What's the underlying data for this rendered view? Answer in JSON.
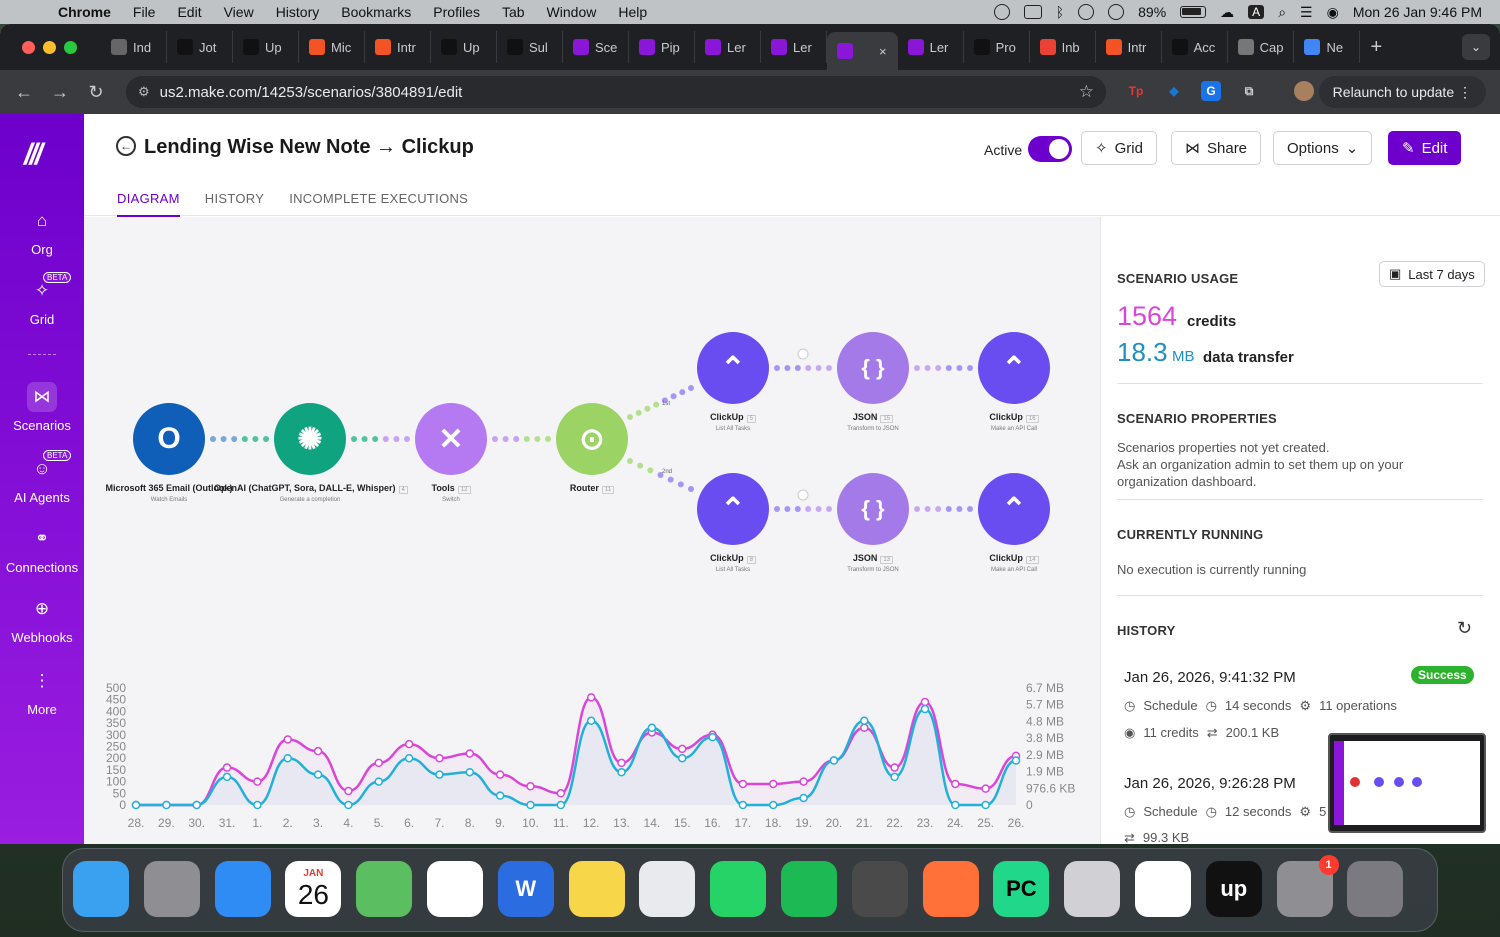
{
  "menubar": {
    "app_name": "Chrome",
    "menus": [
      "File",
      "Edit",
      "View",
      "History",
      "Bookmarks",
      "Profiles",
      "Tab",
      "Window",
      "Help"
    ],
    "battery": "89%",
    "datetime": "Mon 26 Jan  9:46 PM",
    "input_indicator": "A"
  },
  "browser": {
    "tabs": [
      {
        "label": "Ind",
        "icon": "info-icon"
      },
      {
        "label": "Jot",
        "icon": "upwork-icon"
      },
      {
        "label": "Up",
        "icon": "upwork-icon"
      },
      {
        "label": "Mic",
        "icon": "microsoft-icon"
      },
      {
        "label": "Intr",
        "icon": "microsoft-icon"
      },
      {
        "label": "Up",
        "icon": "upwork-icon"
      },
      {
        "label": "Sul",
        "icon": "upwork-icon"
      },
      {
        "label": "Sce",
        "icon": "make-icon"
      },
      {
        "label": "Pip",
        "icon": "make-icon"
      },
      {
        "label": "Ler",
        "icon": "make-icon"
      },
      {
        "label": "Ler",
        "icon": "make-icon"
      },
      {
        "label": "",
        "icon": "make-icon",
        "active": true
      },
      {
        "label": "Ler",
        "icon": "make-icon"
      },
      {
        "label": "Pro",
        "icon": "upwork-icon"
      },
      {
        "label": "Inb",
        "icon": "gmail-icon"
      },
      {
        "label": "Intr",
        "icon": "microsoft-icon"
      },
      {
        "label": "Acc",
        "icon": "github-icon"
      },
      {
        "label": "Cap",
        "icon": "globe-icon"
      },
      {
        "label": "Ne",
        "icon": "chrome-icon"
      }
    ],
    "url": "us2.make.com/14253/scenarios/3804891/edit",
    "relaunch_label": "Relaunch to update",
    "extensions": [
      {
        "text": "Tp",
        "color": "#e53935"
      },
      {
        "text": "◆",
        "color": "#1976d2"
      },
      {
        "text": "G",
        "color": "#1a73e8"
      },
      {
        "text": "⧉",
        "color": "#5f6368"
      }
    ]
  },
  "sidebar": {
    "items": [
      {
        "label": "Org",
        "icon": "home-icon",
        "glyph": "⌂"
      },
      {
        "label": "Grid",
        "icon": "grid-icon",
        "glyph": "✧",
        "beta": "BETA"
      },
      {
        "label": "Scenarios",
        "icon": "share-icon",
        "glyph": "⋈",
        "active": true
      },
      {
        "label": "AI Agents",
        "icon": "ai-agent-icon",
        "glyph": "☺",
        "beta": "BETA"
      },
      {
        "label": "Connections",
        "icon": "link-icon",
        "glyph": "⚭"
      },
      {
        "label": "Webhooks",
        "icon": "globe-icon",
        "glyph": "⊕"
      },
      {
        "label": "More",
        "icon": "more-icon",
        "glyph": "⋮"
      }
    ]
  },
  "header": {
    "title": "Lending Wise New Note → Clickup",
    "active_label": "Active",
    "grid": "Grid",
    "share": "Share",
    "options": "Options",
    "edit": "Edit",
    "tabs": [
      "DIAGRAM",
      "HISTORY",
      "INCOMPLETE EXECUTIONS"
    ]
  },
  "diagram": {
    "nodes": [
      {
        "name": "Microsoft 365 Email (Outlook)",
        "sub": "Watch Emails",
        "badge": "",
        "color": "#0f5fb8",
        "glyph": "O"
      },
      {
        "name": "OpenAI (ChatGPT, Sora, DALL-E, Whisper)",
        "sub": "Generate a completion",
        "badge": "4",
        "color": "#10a37f",
        "glyph": "✺"
      },
      {
        "name": "Tools",
        "sub": "Switch",
        "badge": "12",
        "color": "#b57af2",
        "glyph": "✕"
      },
      {
        "name": "Router",
        "sub": "",
        "badge": "11",
        "color": "#9bd465",
        "glyph": "⊙"
      },
      {
        "name": "ClickUp",
        "sub": "List All Tasks",
        "badge": "5",
        "color": "#6a4df0",
        "glyph": "⌃"
      },
      {
        "name": "JSON",
        "sub": "Transform to JSON",
        "badge": "15",
        "color": "#a47ae8",
        "glyph": "{ }"
      },
      {
        "name": "ClickUp",
        "sub": "Make an API Call",
        "badge": "16",
        "color": "#6a4df0",
        "glyph": "⌃"
      },
      {
        "name": "ClickUp",
        "sub": "List All Tasks",
        "badge": "8",
        "color": "#6a4df0",
        "glyph": "⌃"
      },
      {
        "name": "JSON",
        "sub": "Transform to JSON",
        "badge": "13",
        "color": "#a47ae8",
        "glyph": "{ }"
      },
      {
        "name": "ClickUp",
        "sub": "Make an API Call",
        "badge": "14",
        "color": "#6a4df0",
        "glyph": "⌃"
      }
    ],
    "route_labels": [
      "1st",
      "2nd"
    ]
  },
  "chart_data": {
    "type": "line",
    "categories": [
      "28.",
      "29.",
      "30.",
      "31.",
      "1.",
      "2.",
      "3.",
      "4.",
      "5.",
      "6.",
      "7.",
      "8.",
      "9.",
      "10.",
      "11.",
      "12.",
      "13.",
      "14.",
      "15.",
      "16.",
      "17.",
      "18.",
      "19.",
      "20.",
      "21.",
      "22.",
      "23.",
      "24.",
      "25.",
      "26."
    ],
    "series": [
      {
        "values": [
          0,
          0,
          0,
          160,
          100,
          280,
          230,
          60,
          180,
          260,
          200,
          220,
          130,
          80,
          50,
          460,
          180,
          310,
          240,
          300,
          90,
          90,
          100,
          190,
          330,
          160,
          440,
          90,
          70,
          210
        ],
        "color": "#d946d9"
      },
      {
        "values": [
          0,
          0,
          0,
          120,
          0,
          200,
          130,
          0,
          100,
          200,
          130,
          140,
          40,
          0,
          0,
          360,
          140,
          330,
          200,
          290,
          0,
          0,
          30,
          190,
          360,
          120,
          410,
          0,
          0,
          190
        ],
        "color": "#22b0d8"
      }
    ],
    "ylim": [
      0,
      500
    ],
    "y_ticks": [
      "500",
      "450",
      "400",
      "350",
      "300",
      "250",
      "200",
      "150",
      "100",
      "50",
      "0"
    ],
    "y2_ticks": [
      "6.7 MB",
      "5.7 MB",
      "4.8 MB",
      "3.8 MB",
      "2.9 MB",
      "1.9 MB",
      "976.6 KB",
      "0"
    ],
    "grid": false
  },
  "panel": {
    "usage_title": "SCENARIO USAGE",
    "period": "Last 7 days",
    "credits_value": "1564",
    "credits_label": "credits",
    "data_value": "18.3",
    "data_unit": "MB",
    "data_label": "data transfer",
    "props_title": "SCENARIO PROPERTIES",
    "props_text1": "Scenarios properties not yet created.",
    "props_text2": "Ask an organization admin to set them up on your",
    "props_text3": "organization dashboard.",
    "running_title": "CURRENTLY RUNNING",
    "running_text": "No execution is currently running",
    "history_title": "HISTORY",
    "history": [
      {
        "date": "Jan 26, 2026, 9:41:32 PM",
        "status": "Success",
        "trigger": "Schedule",
        "duration": "14 seconds",
        "operations": "11 operations",
        "credits": "11 credits",
        "transfer": "200.1 KB"
      },
      {
        "date": "Jan 26, 2026, 9:26:28 PM",
        "trigger": "Schedule",
        "duration": "12 seconds",
        "operations": "5 o",
        "transfer": "99.3 KB"
      }
    ]
  },
  "dock": {
    "apps": [
      {
        "name": "Finder",
        "color": "#3aa0f0"
      },
      {
        "name": "Launchpad",
        "color": "#8e8e93"
      },
      {
        "name": "Mail",
        "color": "#2f8cf5"
      },
      {
        "name": "Calendar",
        "color": "#ffffff",
        "month": "JAN",
        "day": "26"
      },
      {
        "name": "Maps",
        "color": "#5bbf62"
      },
      {
        "name": "Reminders",
        "color": "#ffffff"
      },
      {
        "name": "Word",
        "color": "#2b6de0",
        "glyph": "W"
      },
      {
        "name": "Notes",
        "color": "#f7d64a"
      },
      {
        "name": "Chrome",
        "color": "#e8eaed"
      },
      {
        "name": "WhatsApp",
        "color": "#25d366"
      },
      {
        "name": "Spotify",
        "color": "#1db954"
      },
      {
        "name": "Calculator",
        "color": "#4a4a4a"
      },
      {
        "name": "Firefox",
        "color": "#ff7139"
      },
      {
        "name": "PyCharm",
        "color": "#21d789",
        "glyph": "PC"
      },
      {
        "name": "iPhone Mirroring",
        "color": "#d0d0d5"
      },
      {
        "name": "Slack",
        "color": "#ffffff"
      },
      {
        "name": "Upwork",
        "color": "#111111",
        "glyph": "up"
      },
      {
        "name": "System Settings",
        "color": "#8e8e93",
        "badge": "1"
      },
      {
        "name": "Trash",
        "color": "#7a7a80"
      }
    ]
  }
}
